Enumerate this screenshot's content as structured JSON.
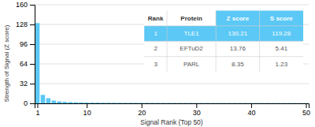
{
  "chart_data": {
    "type": "bar",
    "xlabel": "Signal Rank (Top 50)",
    "ylabel": "Strength of Signal (Z score)",
    "x": [
      1,
      2,
      3,
      4,
      5,
      6,
      7,
      8,
      9,
      10,
      11,
      12,
      13,
      14,
      15,
      16,
      17,
      18,
      19,
      20,
      21,
      22,
      23,
      24,
      25,
      26,
      27,
      28,
      29,
      30,
      31,
      32,
      33,
      34,
      35,
      36,
      37,
      38,
      39,
      40,
      41,
      42,
      43,
      44,
      45,
      46,
      47,
      48,
      49,
      50
    ],
    "values": [
      130.21,
      13.76,
      8.35,
      4.5,
      3.2,
      2.5,
      2.0,
      1.7,
      1.5,
      1.3,
      1.2,
      1.1,
      1.0,
      0.95,
      0.9,
      0.85,
      0.8,
      0.77,
      0.74,
      0.71,
      0.68,
      0.66,
      0.64,
      0.62,
      0.6,
      0.58,
      0.56,
      0.55,
      0.54,
      0.53,
      0.52,
      0.51,
      0.5,
      0.49,
      0.48,
      0.47,
      0.46,
      0.45,
      0.44,
      0.43,
      0.42,
      0.41,
      0.4,
      0.4,
      0.39,
      0.38,
      0.37,
      0.36,
      0.35,
      0.34
    ],
    "color": "#5bc8f5",
    "xlim": [
      0.5,
      50.5
    ],
    "xticks": [
      1,
      10,
      20,
      30,
      40,
      50
    ],
    "ylim": [
      0,
      160
    ],
    "yticks": [
      0,
      32,
      64,
      96,
      128,
      160
    ],
    "grid": true,
    "table": [
      [
        "Rank",
        "Protein",
        "Z score",
        "S score"
      ],
      [
        "1",
        "TLE1",
        "130.21",
        "119.28"
      ],
      [
        "2",
        "EFTuD2",
        "13.76",
        "5.41"
      ],
      [
        "3",
        "PARL",
        "8.35",
        "1.23"
      ]
    ]
  }
}
